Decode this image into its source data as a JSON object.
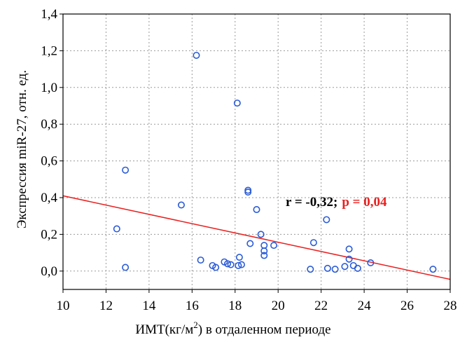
{
  "chart_data": {
    "type": "scatter",
    "xlabel_pre": "ИМТ(кг/м",
    "xlabel_sup": "2",
    "xlabel_post": ") в отдаленном периоде",
    "ylabel": "Экспрессия miR-27, отн. ед.",
    "xlim": [
      10,
      28
    ],
    "ylim": [
      -0.1,
      1.4
    ],
    "xticks": [
      10,
      12,
      14,
      16,
      18,
      20,
      22,
      24,
      26,
      28
    ],
    "yticks": [
      0.0,
      0.2,
      0.4,
      0.6,
      0.8,
      1.0,
      1.2,
      1.4
    ],
    "xtick_labels": [
      "10",
      "12",
      "14",
      "16",
      "18",
      "20",
      "22",
      "24",
      "26",
      "28"
    ],
    "ytick_labels": [
      "0,0",
      "0,2",
      "0,4",
      "0,6",
      "0,8",
      "1,0",
      "1,2",
      "1,4"
    ],
    "grid": true,
    "point_color": "#2a5bd7",
    "line_color": "#e8201f",
    "points": [
      {
        "x": 12.5,
        "y": 0.23
      },
      {
        "x": 12.9,
        "y": 0.55
      },
      {
        "x": 12.9,
        "y": 0.02
      },
      {
        "x": 15.5,
        "y": 0.36
      },
      {
        "x": 16.2,
        "y": 1.175
      },
      {
        "x": 16.4,
        "y": 0.06
      },
      {
        "x": 16.95,
        "y": 0.03
      },
      {
        "x": 17.1,
        "y": 0.02
      },
      {
        "x": 17.5,
        "y": 0.05
      },
      {
        "x": 17.65,
        "y": 0.04
      },
      {
        "x": 17.8,
        "y": 0.035
      },
      {
        "x": 18.1,
        "y": 0.915
      },
      {
        "x": 18.15,
        "y": 0.03
      },
      {
        "x": 18.2,
        "y": 0.075
      },
      {
        "x": 18.3,
        "y": 0.035
      },
      {
        "x": 18.6,
        "y": 0.44
      },
      {
        "x": 18.6,
        "y": 0.43
      },
      {
        "x": 18.7,
        "y": 0.15
      },
      {
        "x": 19.0,
        "y": 0.335
      },
      {
        "x": 19.2,
        "y": 0.2
      },
      {
        "x": 19.35,
        "y": 0.14
      },
      {
        "x": 19.35,
        "y": 0.11
      },
      {
        "x": 19.35,
        "y": 0.085
      },
      {
        "x": 19.8,
        "y": 0.14
      },
      {
        "x": 21.5,
        "y": 0.01
      },
      {
        "x": 21.65,
        "y": 0.155
      },
      {
        "x": 22.25,
        "y": 0.28
      },
      {
        "x": 22.3,
        "y": 0.015
      },
      {
        "x": 22.65,
        "y": 0.01
      },
      {
        "x": 23.1,
        "y": 0.025
      },
      {
        "x": 23.3,
        "y": 0.12
      },
      {
        "x": 23.3,
        "y": 0.065
      },
      {
        "x": 23.5,
        "y": 0.03
      },
      {
        "x": 23.7,
        "y": 0.015
      },
      {
        "x": 24.3,
        "y": 0.045
      },
      {
        "x": 27.2,
        "y": 0.01
      }
    ],
    "regression_line": {
      "x1": 10,
      "y1": 0.41,
      "x2": 28,
      "y2": -0.045
    },
    "annotation_r": "r = -0,32;",
    "annotation_p": "p = 0,04",
    "annotation_r_color": "#000000",
    "annotation_p_color": "#e8201f"
  }
}
